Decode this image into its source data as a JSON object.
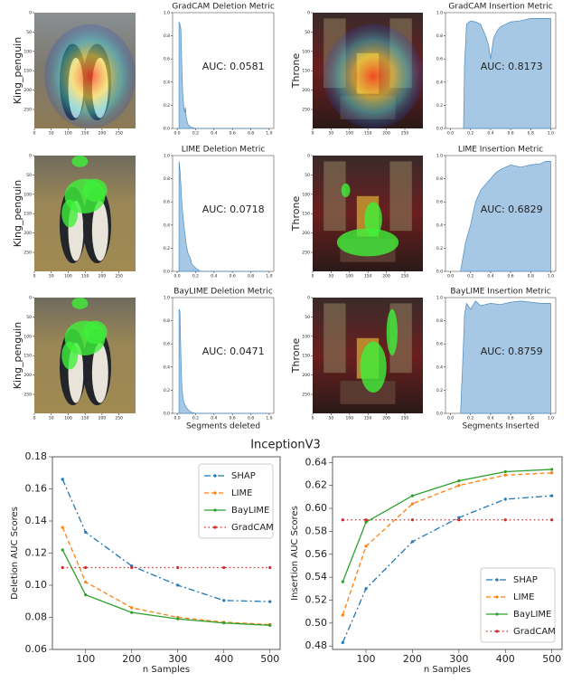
{
  "figure_title": "InceptionV3",
  "chart_data": [
    {
      "type": "image",
      "ylabel": "King_penguin",
      "xlim": [
        0,
        299
      ],
      "ylim": [
        299,
        0
      ],
      "xticks": [
        0,
        50,
        100,
        150,
        200,
        250
      ],
      "yticks": [
        0,
        50,
        100,
        150,
        200,
        250
      ]
    },
    {
      "type": "area",
      "title": "GradCAM Deletion Metric",
      "annotation": "AUC: 0.0581",
      "color": "#a6c8e4",
      "line_color": "#4f8bc0",
      "x": [
        0.02,
        0.03,
        0.04,
        0.05,
        0.06,
        0.07,
        0.08,
        0.09,
        0.1,
        0.12,
        0.15,
        0.2,
        1.0
      ],
      "values": [
        0.92,
        0.9,
        0.86,
        0.55,
        0.3,
        0.2,
        0.14,
        0.18,
        0.08,
        0.03,
        0.01,
        0,
        0
      ],
      "xlim": [
        -0.05,
        1.05
      ],
      "ylim": [
        0,
        1.0
      ],
      "xticks": [
        {
          "value": 0,
          "label": "0.0"
        },
        0.2,
        0.4,
        0.6,
        0.8,
        {
          "value": 1,
          "label": "1.0"
        }
      ],
      "yticks": [
        {
          "value": 0,
          "label": "0.0"
        },
        0.2,
        0.4,
        0.6,
        0.8,
        {
          "value": 1,
          "label": "1.0"
        }
      ]
    },
    {
      "type": "image",
      "ylabel": "Throne",
      "xlim": [
        0,
        299
      ],
      "ylim": [
        299,
        0
      ],
      "xticks": [
        0,
        50,
        100,
        150,
        200,
        250
      ],
      "yticks": [
        0,
        50,
        100,
        150,
        200,
        250
      ]
    },
    {
      "type": "area",
      "title": "GradCAM Insertion Metric",
      "annotation": "AUC: 0.8173",
      "color": "#a6c8e4",
      "line_color": "#4f8bc0",
      "x": [
        0.13,
        0.14,
        0.16,
        0.2,
        0.25,
        0.3,
        0.35,
        0.38,
        0.4,
        0.43,
        0.47,
        0.5,
        0.55,
        0.6,
        0.7,
        0.8,
        0.9,
        1.0
      ],
      "values": [
        0,
        0.55,
        0.9,
        0.93,
        0.92,
        0.9,
        0.8,
        0.72,
        0.6,
        0.78,
        0.85,
        0.88,
        0.9,
        0.92,
        0.93,
        0.95,
        0.95,
        0.95
      ],
      "xlim": [
        -0.05,
        1.05
      ],
      "ylim": [
        0,
        1.0
      ],
      "xticks": [
        {
          "value": 0,
          "label": "0.0"
        },
        0.2,
        0.4,
        0.6,
        0.8,
        {
          "value": 1,
          "label": "1.0"
        }
      ],
      "yticks": [
        {
          "value": 0,
          "label": "0.0"
        },
        0.2,
        0.4,
        0.6,
        0.8,
        {
          "value": 1,
          "label": "1.0"
        }
      ]
    },
    {
      "type": "image",
      "ylabel": "King_penguin",
      "xlim": [
        0,
        299
      ],
      "ylim": [
        299,
        0
      ],
      "xticks": [
        0,
        50,
        100,
        150,
        200,
        250
      ],
      "yticks": [
        0,
        50,
        100,
        150,
        200,
        250
      ]
    },
    {
      "type": "area",
      "title": "LIME Deletion Metric",
      "annotation": "AUC: 0.0718",
      "color": "#a6c8e4",
      "line_color": "#4f8bc0",
      "x": [
        0.02,
        0.03,
        0.04,
        0.05,
        0.06,
        0.08,
        0.1,
        0.12,
        0.14,
        0.16,
        0.2,
        0.25,
        1.0
      ],
      "values": [
        0.95,
        0.88,
        0.75,
        0.6,
        0.5,
        0.35,
        0.22,
        0.15,
        0.12,
        0.06,
        0.03,
        0,
        0
      ],
      "xlim": [
        -0.05,
        1.05
      ],
      "ylim": [
        0,
        1.0
      ],
      "xticks": [
        {
          "value": 0,
          "label": "0.0"
        },
        0.2,
        0.4,
        0.6,
        0.8,
        {
          "value": 1,
          "label": "1.0"
        }
      ],
      "yticks": [
        {
          "value": 0,
          "label": "0.0"
        },
        0.2,
        0.4,
        0.6,
        0.8,
        {
          "value": 1,
          "label": "1.0"
        }
      ]
    },
    {
      "type": "image",
      "ylabel": "Throne",
      "xlim": [
        0,
        299
      ],
      "ylim": [
        299,
        0
      ],
      "xticks": [
        0,
        50,
        100,
        150,
        200,
        250
      ],
      "yticks": [
        0,
        50,
        100,
        150,
        200,
        250
      ]
    },
    {
      "type": "area",
      "title": "LIME Insertion Metric",
      "annotation": "AUC: 0.6829",
      "color": "#a6c8e4",
      "line_color": "#4f8bc0",
      "x": [
        0.1,
        0.12,
        0.15,
        0.2,
        0.25,
        0.3,
        0.35,
        0.4,
        0.45,
        0.5,
        0.55,
        0.6,
        0.7,
        0.8,
        0.9,
        0.95,
        1.0
      ],
      "values": [
        0,
        0.1,
        0.25,
        0.4,
        0.6,
        0.7,
        0.75,
        0.8,
        0.85,
        0.88,
        0.9,
        0.92,
        0.9,
        0.92,
        0.93,
        0.95,
        0.95
      ],
      "xlim": [
        -0.05,
        1.05
      ],
      "ylim": [
        0,
        1.0
      ],
      "xticks": [
        {
          "value": 0,
          "label": "0.0"
        },
        0.2,
        0.4,
        0.6,
        0.8,
        {
          "value": 1,
          "label": "1.0"
        }
      ],
      "yticks": [
        {
          "value": 0,
          "label": "0.0"
        },
        0.2,
        0.4,
        0.6,
        0.8,
        {
          "value": 1,
          "label": "1.0"
        }
      ]
    },
    {
      "type": "image",
      "ylabel": "King_penguin",
      "xlim": [
        0,
        299
      ],
      "ylim": [
        299,
        0
      ],
      "xticks": [
        0,
        50,
        100,
        150,
        200,
        250
      ],
      "yticks": [
        0,
        50,
        100,
        150,
        200,
        250
      ]
    },
    {
      "type": "area",
      "title": "BayLIME Deletion Metric",
      "xlabel": "Segments deleted",
      "annotation": "AUC: 0.0471",
      "color": "#a6c8e4",
      "line_color": "#4f8bc0",
      "x": [
        0.02,
        0.03,
        0.04,
        0.05,
        0.06,
        0.07,
        0.08,
        0.1,
        0.12,
        0.15,
        0.2,
        1.0
      ],
      "values": [
        0.9,
        0.88,
        0.5,
        0.25,
        0.15,
        0.1,
        0.08,
        0.05,
        0.03,
        0.01,
        0,
        0
      ],
      "xlim": [
        -0.05,
        1.05
      ],
      "ylim": [
        0,
        1.0
      ],
      "xticks": [
        {
          "value": 0,
          "label": "0.0"
        },
        0.2,
        0.4,
        0.6,
        0.8,
        {
          "value": 1,
          "label": "1.0"
        }
      ],
      "yticks": [
        {
          "value": 0,
          "label": "0.0"
        },
        0.2,
        0.4,
        0.6,
        0.8,
        {
          "value": 1,
          "label": "1.0"
        }
      ]
    },
    {
      "type": "image",
      "ylabel": "Throne",
      "xlim": [
        0,
        299
      ],
      "ylim": [
        299,
        0
      ],
      "xticks": [
        0,
        50,
        100,
        150,
        200,
        250
      ],
      "yticks": [
        0,
        50,
        100,
        150,
        200,
        250
      ]
    },
    {
      "type": "area",
      "title": "BayLIME Insertion Metric",
      "xlabel": "Segments Inserted",
      "annotation": "AUC: 0.8759",
      "color": "#a6c8e4",
      "line_color": "#4f8bc0",
      "x": [
        0.1,
        0.12,
        0.14,
        0.16,
        0.2,
        0.25,
        0.3,
        0.4,
        0.5,
        0.6,
        0.7,
        0.8,
        0.9,
        1.0
      ],
      "values": [
        0,
        0.4,
        0.85,
        0.95,
        0.9,
        0.97,
        0.93,
        0.95,
        0.94,
        0.96,
        0.97,
        0.96,
        0.95,
        0.95
      ],
      "xlim": [
        -0.05,
        1.05
      ],
      "ylim": [
        0,
        1.0
      ],
      "xticks": [
        {
          "value": 0,
          "label": "0.0"
        },
        0.2,
        0.4,
        0.6,
        0.8,
        {
          "value": 1,
          "label": "1.0"
        }
      ],
      "yticks": [
        {
          "value": 0,
          "label": "0.0"
        },
        0.2,
        0.4,
        0.6,
        0.8,
        {
          "value": 1,
          "label": "1.0"
        }
      ]
    },
    {
      "type": "line",
      "xlabel": "n Samples",
      "ylabel": "Deletion AUC Scores",
      "legend": "upper right",
      "x": [
        50,
        100,
        200,
        300,
        400,
        500
      ],
      "xlim": [
        28,
        522
      ],
      "xticks": [
        100,
        200,
        300,
        400,
        500
      ],
      "ylim": [
        0.06,
        0.18
      ],
      "yticks": [
        0.06,
        0.08,
        {
          "value": 0.1,
          "label": "0.10"
        },
        0.12,
        0.14,
        0.16,
        0.18
      ],
      "series": [
        {
          "name": "SHAP",
          "color": "#1f77b4",
          "style": "dashdot",
          "values": [
            0.166,
            0.133,
            0.112,
            0.1,
            0.0905,
            0.0898
          ]
        },
        {
          "name": "LIME",
          "color": "#ff7f0e",
          "style": "dashed",
          "values": [
            0.136,
            0.102,
            0.086,
            0.08,
            0.077,
            0.0755
          ]
        },
        {
          "name": "BayLIME",
          "color": "#2ca02c",
          "style": "solid",
          "values": [
            0.122,
            0.094,
            0.083,
            0.079,
            0.0765,
            0.075
          ]
        },
        {
          "name": "GradCAM",
          "color": "#d62728",
          "style": "dotted",
          "values": [
            0.111,
            0.111,
            0.111,
            0.111,
            0.111,
            0.111
          ]
        }
      ]
    },
    {
      "type": "line",
      "xlabel": "n Samples",
      "ylabel": "Insertion AUC Scores",
      "legend": "lower right",
      "x": [
        50,
        100,
        200,
        300,
        400,
        500
      ],
      "xlim": [
        28,
        522
      ],
      "xticks": [
        100,
        200,
        300,
        400,
        500
      ],
      "ylim": [
        0.477,
        0.645
      ],
      "yticks": [
        0.48,
        {
          "value": 0.5,
          "label": "0.50"
        },
        0.52,
        0.54,
        0.56,
        0.58,
        {
          "value": 0.6,
          "label": "0.60"
        },
        0.62,
        0.64
      ],
      "series": [
        {
          "name": "SHAP",
          "color": "#1f77b4",
          "style": "dashdot",
          "values": [
            0.483,
            0.53,
            0.571,
            0.592,
            0.608,
            0.611
          ]
        },
        {
          "name": "LIME",
          "color": "#ff7f0e",
          "style": "dashed",
          "values": [
            0.507,
            0.567,
            0.604,
            0.62,
            0.629,
            0.631
          ]
        },
        {
          "name": "BayLIME",
          "color": "#2ca02c",
          "style": "solid",
          "values": [
            0.536,
            0.588,
            0.611,
            0.624,
            0.632,
            0.634
          ]
        },
        {
          "name": "GradCAM",
          "color": "#d62728",
          "style": "dotted",
          "values": [
            0.59,
            0.59,
            0.59,
            0.59,
            0.59,
            0.59
          ]
        }
      ]
    }
  ]
}
